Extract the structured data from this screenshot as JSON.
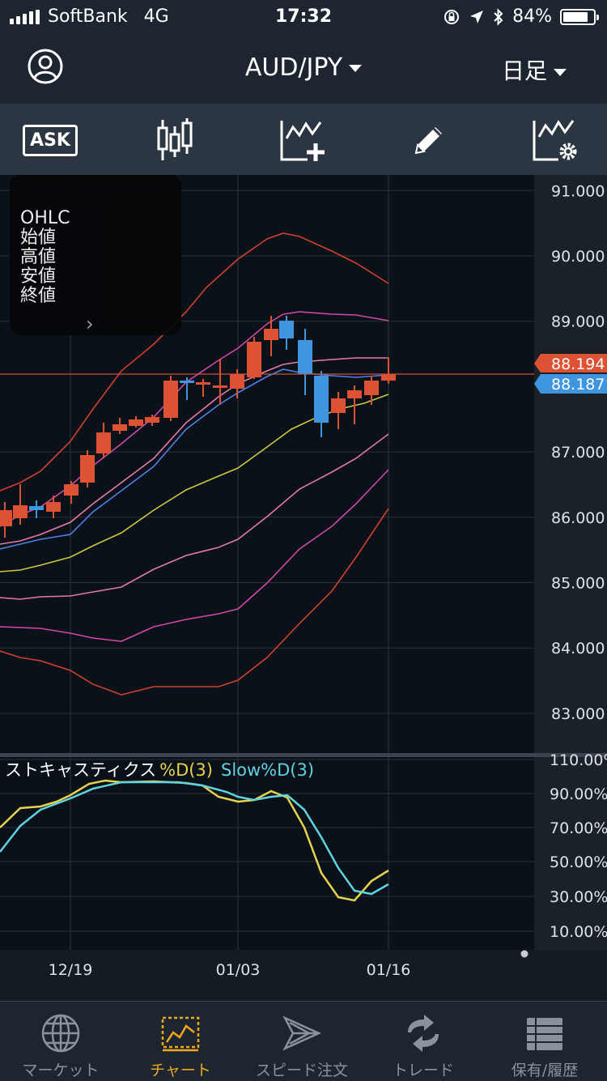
{
  "status": {
    "carrier": "SoftBank",
    "network": "4G",
    "time": "17:32",
    "battery": "84%"
  },
  "nav": {
    "pair": "AUD/JPY",
    "period": "日足"
  },
  "toolbar": {
    "ask_label": "ASK"
  },
  "ohlc": {
    "title": "OHLC",
    "open": "始値",
    "high": "高値",
    "low": "安値",
    "close": "終値"
  },
  "price_axis": {
    "ticks": [
      "91.000",
      "90.000",
      "89.000",
      "87.000",
      "86.000",
      "85.000",
      "84.000",
      "83.000"
    ],
    "last_price": "88.194",
    "bid_price": "88.187"
  },
  "indicator": {
    "name": "ストキャスティクス",
    "series1": "%D(3)",
    "series2": "Slow%D(3)",
    "ticks": [
      "110.00%",
      "90.00%",
      "70.00%",
      "50.00%",
      "30.00%",
      "10.00%"
    ]
  },
  "date_axis": {
    "labels": [
      "12/19",
      "01/03",
      "01/16"
    ]
  },
  "colors": {
    "up": "#dd5233",
    "down": "#3f95e0",
    "accent": "#f0a71c",
    "pctD": "#e6d24e",
    "slowD": "#5fd3e0"
  },
  "tabs": [
    {
      "label": "マーケット",
      "icon": "globe-icon"
    },
    {
      "label": "チャート",
      "icon": "chart-icon"
    },
    {
      "label": "スピード注文",
      "icon": "speed-order-icon"
    },
    {
      "label": "トレード",
      "icon": "trade-icon"
    },
    {
      "label": "保有/履歴",
      "icon": "holdings-icon"
    }
  ]
}
